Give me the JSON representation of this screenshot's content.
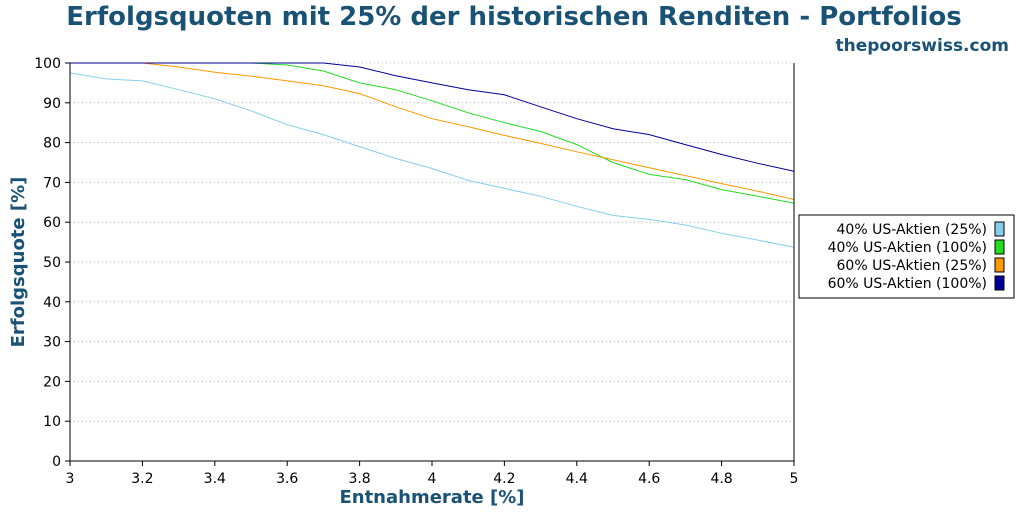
{
  "chart_data": {
    "type": "line",
    "title": "Erfolgsquoten mit 25% der historischen Renditen - Portfolios",
    "subtitle": "thepoorswiss.com",
    "xlabel": "Entnahmerate [%]",
    "ylabel": "Erfolgsquote [%]",
    "xlim": [
      3,
      5
    ],
    "ylim": [
      0,
      100
    ],
    "xticks": [
      "3",
      "3.2",
      "3.4",
      "3.6",
      "3.8",
      "4",
      "4.2",
      "4.4",
      "4.6",
      "4.8",
      "5"
    ],
    "yticks": [
      "0",
      "10",
      "20",
      "30",
      "40",
      "50",
      "60",
      "70",
      "80",
      "90",
      "100"
    ],
    "grid": "horizontal-dotted",
    "legend_position": "right",
    "x": [
      3.0,
      3.1,
      3.2,
      3.3,
      3.4,
      3.5,
      3.6,
      3.7,
      3.8,
      3.9,
      4.0,
      4.1,
      4.2,
      4.3,
      4.4,
      4.5,
      4.6,
      4.7,
      4.8,
      4.9,
      5.0
    ],
    "series": [
      {
        "name": "40% US-Aktien (25%)",
        "color": "#87ceeb",
        "values": [
          97.5,
          96,
          95.5,
          93.3,
          91,
          88,
          84.5,
          82,
          79,
          76,
          73.5,
          70.5,
          68.5,
          66.5,
          64,
          61.7,
          60.7,
          59.3,
          57.2,
          55.5,
          53.7
        ]
      },
      {
        "name": "40% US-Aktien (100%)",
        "color": "#22dd22",
        "values": [
          100,
          100,
          100,
          100,
          100,
          100,
          99.5,
          98,
          95,
          93.3,
          90.5,
          87.5,
          85,
          82.8,
          79.5,
          75,
          72,
          70.7,
          68.2,
          66.5,
          64.8
        ]
      },
      {
        "name": "60% US-Aktien (25%)",
        "color": "#ff9900",
        "values": [
          100,
          100,
          100,
          99,
          97.7,
          96.7,
          95.5,
          94.3,
          92.3,
          89,
          86,
          84,
          81.8,
          79.8,
          77.7,
          75.7,
          73.7,
          71.7,
          69.7,
          67.8,
          65.7
        ]
      },
      {
        "name": "60% US-Aktien (100%)",
        "color": "#000099",
        "values": [
          100,
          100,
          100,
          100,
          100,
          100,
          100,
          100,
          99,
          96.8,
          95,
          93.3,
          92,
          89,
          86,
          83.5,
          82,
          79.5,
          77,
          74.8,
          72.8
        ]
      }
    ]
  }
}
